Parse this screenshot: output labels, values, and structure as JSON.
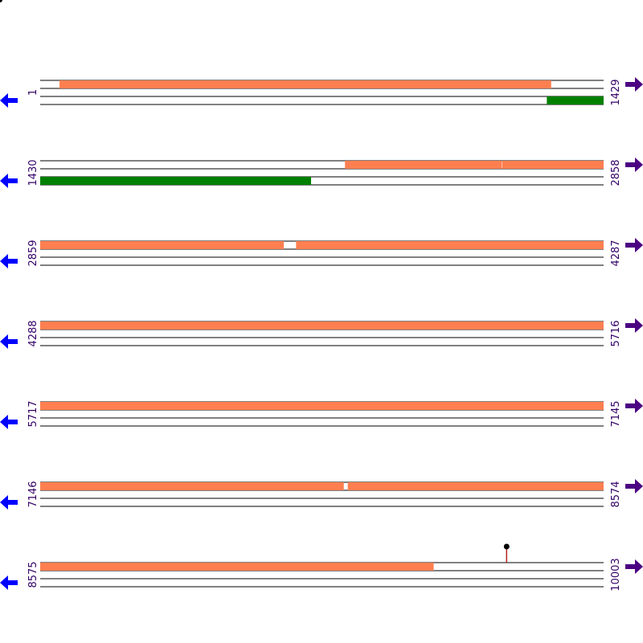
{
  "colors": {
    "forward_feature": "#ff7f50",
    "reverse_feature": "#008000",
    "coordinate_text": "#330066",
    "left_arrow": "#0000ff",
    "right_arrow": "#4b0082",
    "marker_line": "#b22222",
    "marker_head": "#000000",
    "track_line": "#000000"
  },
  "icons": {
    "left": "arrow-left-icon",
    "right": "arrow-right-icon",
    "marker": "lollipop-marker-icon"
  },
  "rows": [
    {
      "start_label": "1",
      "end_label": "1429",
      "range": [
        1,
        1429
      ],
      "forward": [
        [
          50,
          1296
        ]
      ],
      "reverse": [
        [
          1286,
          1429
        ]
      ],
      "markers": []
    },
    {
      "start_label": "1430",
      "end_label": "2858",
      "range": [
        1430,
        2858
      ],
      "forward": [
        [
          2203,
          2600
        ],
        [
          2602,
          2858
        ]
      ],
      "reverse": [
        [
          1430,
          2116
        ]
      ],
      "markers": []
    },
    {
      "start_label": "2859",
      "end_label": "4287",
      "range": [
        2859,
        4287
      ],
      "forward": [
        [
          2859,
          3476
        ],
        [
          3508,
          4287
        ]
      ],
      "reverse": [],
      "markers": []
    },
    {
      "start_label": "4288",
      "end_label": "5716",
      "range": [
        4288,
        5716
      ],
      "forward": [
        [
          4288,
          5716
        ]
      ],
      "reverse": [],
      "markers": []
    },
    {
      "start_label": "5717",
      "end_label": "7145",
      "range": [
        5717,
        7145
      ],
      "forward": [
        [
          5717,
          7145
        ]
      ],
      "reverse": [],
      "markers": []
    },
    {
      "start_label": "7146",
      "end_label": "8574",
      "range": [
        7146,
        8574
      ],
      "forward": [
        [
          7146,
          7915
        ],
        [
          7926,
          8574
        ]
      ],
      "reverse": [],
      "markers": []
    },
    {
      "start_label": "8575",
      "end_label": "10003",
      "range": [
        8575,
        10003
      ],
      "forward": [
        [
          8575,
          9572
        ]
      ],
      "reverse": [],
      "markers": [
        9758
      ]
    }
  ]
}
